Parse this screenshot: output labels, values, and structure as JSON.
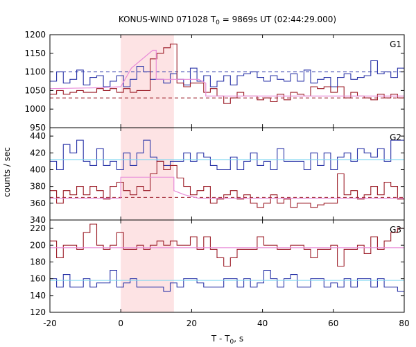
{
  "chart_data": {
    "type": "line",
    "title_main": "KONUS-WIND 071028 T",
    "title_sub": "0",
    "title_rest": " = 9869s UT (02:44:29.000)",
    "xlabel_main": "T - T",
    "xlabel_sub": "0",
    "xlabel_rest": ", s",
    "ylabel": "counts / sec",
    "xlim": [
      -20,
      80
    ],
    "x_ticks": [
      "-20",
      "0",
      "20",
      "40",
      "60",
      "80"
    ],
    "highlight_x": [
      0,
      15
    ],
    "colors": {
      "blue": "#2b35a8",
      "red": "#9b1b26",
      "cyan": "#7fd7f0",
      "pink": "#e88bd8",
      "shade": "#fde3e4",
      "blue_dashed": "#2b35a8",
      "red_dashed": "#9b1b26"
    },
    "panels": [
      {
        "label": "G1",
        "ylim": [
          950,
          1200
        ],
        "y_ticks": [
          950,
          1000,
          1050,
          1100,
          1150,
          1200
        ],
        "blue_dashed": 1100,
        "red_dashed": 1030,
        "blue_series": [
          1075,
          1100,
          1070,
          1080,
          1105,
          1065,
          1085,
          1090,
          1060,
          1075,
          1090,
          1060,
          1080,
          1115,
          1100,
          1080,
          1080,
          1070,
          1095,
          1080,
          1065,
          1110,
          1075,
          1090,
          1060,
          1075,
          1090,
          1065,
          1090,
          1095,
          1100,
          1085,
          1075,
          1090,
          1080,
          1075,
          1095,
          1075,
          1105,
          1070,
          1080,
          1085,
          1060,
          1085,
          1095,
          1080,
          1085,
          1090,
          1130,
          1095,
          1100,
          1085,
          1110
        ],
        "red_series": [
          1040,
          1050,
          1040,
          1045,
          1050,
          1045,
          1045,
          1055,
          1050,
          1055,
          1045,
          1055,
          1045,
          1050,
          1050,
          1135,
          1150,
          1165,
          1175,
          1070,
          1060,
          1070,
          1070,
          1045,
          1055,
          1035,
          1015,
          1030,
          1045,
          1035,
          1035,
          1025,
          1030,
          1020,
          1040,
          1025,
          1045,
          1040,
          1035,
          1060,
          1055,
          1060,
          1045,
          1060,
          1030,
          1045,
          1035,
          1030,
          1025,
          1040,
          1030,
          1040,
          1030
        ],
        "blue_fit": [
          [
            -20,
            1100
          ],
          [
            80,
            1100
          ]
        ],
        "pink_fit": [
          [
            -20,
            1055
          ],
          [
            -8,
            1057
          ],
          [
            0,
            1060
          ],
          [
            3,
            1110
          ],
          [
            9,
            1158
          ],
          [
            10,
            1158
          ],
          [
            10,
            1080
          ],
          [
            22,
            1080
          ],
          [
            24,
            1070
          ],
          [
            24,
            1035
          ],
          [
            80,
            1035
          ]
        ]
      },
      {
        "label": "G2",
        "ylim": [
          340,
          450
        ],
        "y_ticks": [
          340,
          360,
          380,
          400,
          420,
          440
        ],
        "blue_fit_level": 412,
        "red_dashed": 367,
        "blue_series": [
          410,
          400,
          430,
          420,
          435,
          410,
          405,
          425,
          405,
          410,
          400,
          420,
          405,
          420,
          435,
          415,
          410,
          405,
          410,
          410,
          420,
          410,
          420,
          415,
          405,
          400,
          400,
          415,
          400,
          410,
          420,
          405,
          410,
          400,
          425,
          410,
          410,
          410,
          400,
          420,
          405,
          420,
          400,
          415,
          420,
          410,
          425,
          420,
          415,
          425,
          410,
          435,
          435
        ],
        "red_series": [
          375,
          360,
          375,
          370,
          380,
          370,
          380,
          375,
          365,
          380,
          385,
          375,
          370,
          380,
          375,
          395,
          410,
          400,
          405,
          390,
          380,
          370,
          375,
          380,
          360,
          365,
          370,
          375,
          365,
          370,
          360,
          355,
          360,
          370,
          360,
          365,
          355,
          360,
          360,
          355,
          358,
          360,
          360,
          395,
          370,
          375,
          365,
          370,
          380,
          370,
          385,
          380,
          365
        ],
        "pink_fit": [
          [
            -20,
            366
          ],
          [
            0,
            366
          ],
          [
            0,
            391
          ],
          [
            15,
            391
          ],
          [
            15,
            375
          ],
          [
            18,
            370
          ],
          [
            22,
            366
          ],
          [
            80,
            366
          ]
        ]
      },
      {
        "label": "G3",
        "ylim": [
          120,
          230
        ],
        "y_ticks": [
          120,
          140,
          160,
          180,
          200,
          220
        ],
        "blue_fit_level": 158,
        "pink_fit_level": 197,
        "blue_series": [
          160,
          150,
          165,
          150,
          150,
          160,
          150,
          155,
          155,
          170,
          150,
          155,
          160,
          150,
          150,
          150,
          150,
          145,
          155,
          150,
          160,
          160,
          155,
          150,
          150,
          150,
          160,
          160,
          150,
          160,
          150,
          155,
          170,
          160,
          150,
          160,
          165,
          150,
          150,
          160,
          160,
          150,
          155,
          150,
          160,
          150,
          160,
          160,
          150,
          160,
          150,
          150,
          145
        ],
        "red_series": [
          205,
          185,
          200,
          200,
          195,
          215,
          225,
          200,
          195,
          200,
          215,
          195,
          195,
          200,
          195,
          200,
          205,
          200,
          205,
          200,
          200,
          210,
          195,
          210,
          195,
          185,
          175,
          185,
          195,
          195,
          195,
          210,
          200,
          200,
          195,
          195,
          200,
          200,
          195,
          185,
          195,
          195,
          200,
          175,
          195,
          195,
          200,
          190,
          210,
          195,
          205,
          215,
          220
        ]
      }
    ]
  }
}
